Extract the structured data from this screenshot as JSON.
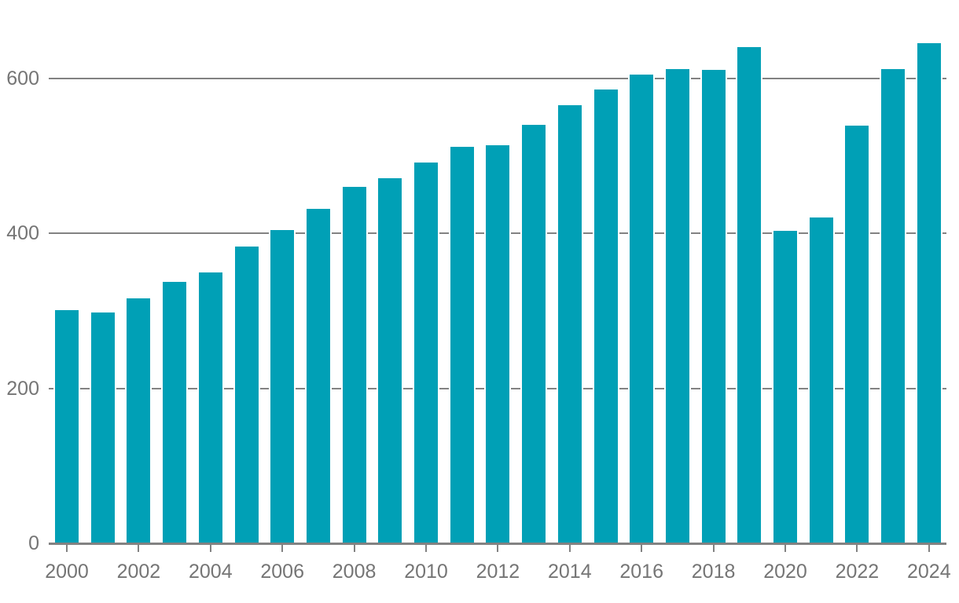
{
  "chart_data": {
    "type": "bar",
    "categories": [
      2000,
      2001,
      2002,
      2003,
      2004,
      2005,
      2006,
      2007,
      2008,
      2009,
      2010,
      2011,
      2012,
      2013,
      2014,
      2015,
      2016,
      2017,
      2018,
      2019,
      2020,
      2021,
      2022,
      2023,
      2024
    ],
    "values": [
      301,
      298,
      316,
      338,
      350,
      383,
      404,
      432,
      460,
      471,
      492,
      512,
      514,
      540,
      566,
      586,
      605,
      612,
      611,
      641,
      403,
      421,
      539,
      612,
      646
    ],
    "xtick_labels": [
      "2000",
      "2002",
      "2004",
      "2006",
      "2008",
      "2010",
      "2012",
      "2014",
      "2016",
      "2018",
      "2020",
      "2022",
      "2024"
    ],
    "yticks": [
      0,
      200,
      400,
      600
    ],
    "ytick_labels": [
      "0",
      "200",
      "400",
      "600"
    ],
    "ylim": [
      0,
      660
    ],
    "title": "",
    "xlabel": "",
    "ylabel": "",
    "legend_position": "none",
    "grid": "horizontal",
    "bar_color": "#00a0b6",
    "grid_color": "#828282",
    "axis_color": "#828282",
    "label_color": "#757575",
    "background_color": "#ffffff"
  }
}
